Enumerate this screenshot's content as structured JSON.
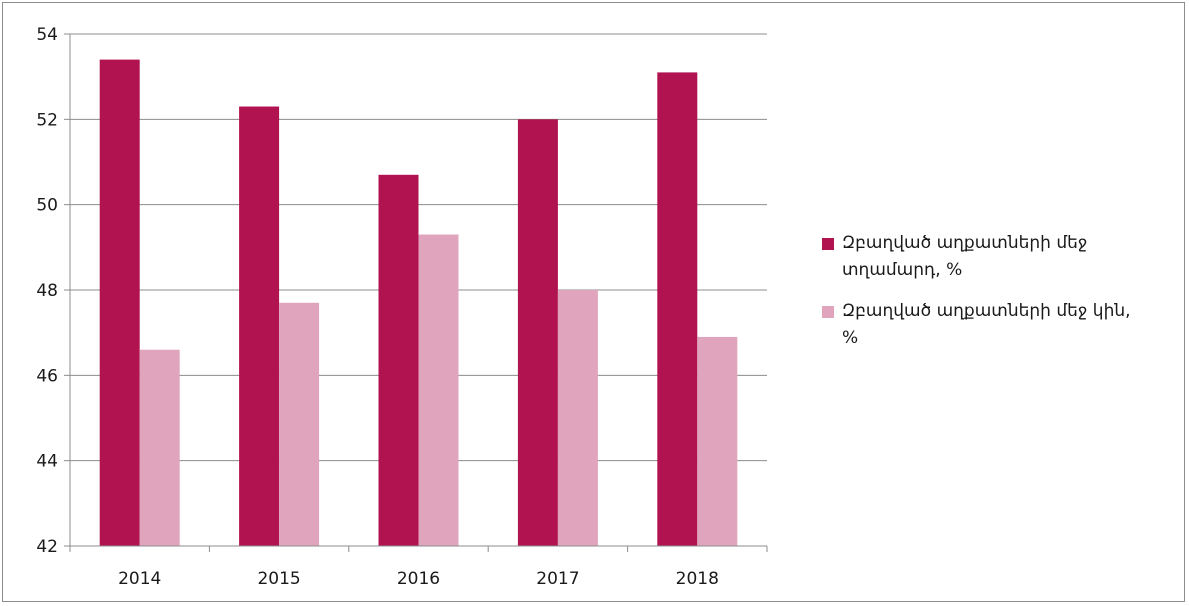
{
  "chart_data": {
    "type": "bar",
    "categories": [
      "2014",
      "2015",
      "2016",
      "2017",
      "2018"
    ],
    "series": [
      {
        "name": "Զբաղված աղքատների մեջ տղամարդ, %",
        "color": "#b0134f",
        "values": [
          53.4,
          52.3,
          50.7,
          52.0,
          53.1
        ]
      },
      {
        "name": "Զբաղված աղքատների մեջ կին, %",
        "color": "#e0a4bc",
        "values": [
          46.6,
          47.7,
          49.3,
          48.0,
          46.9
        ]
      }
    ],
    "ylim": [
      42,
      54
    ],
    "yticks": [
      42,
      44,
      46,
      48,
      50,
      52,
      54
    ],
    "grid": true,
    "legend_position": "right",
    "title": "",
    "xlabel": "",
    "ylabel": ""
  }
}
